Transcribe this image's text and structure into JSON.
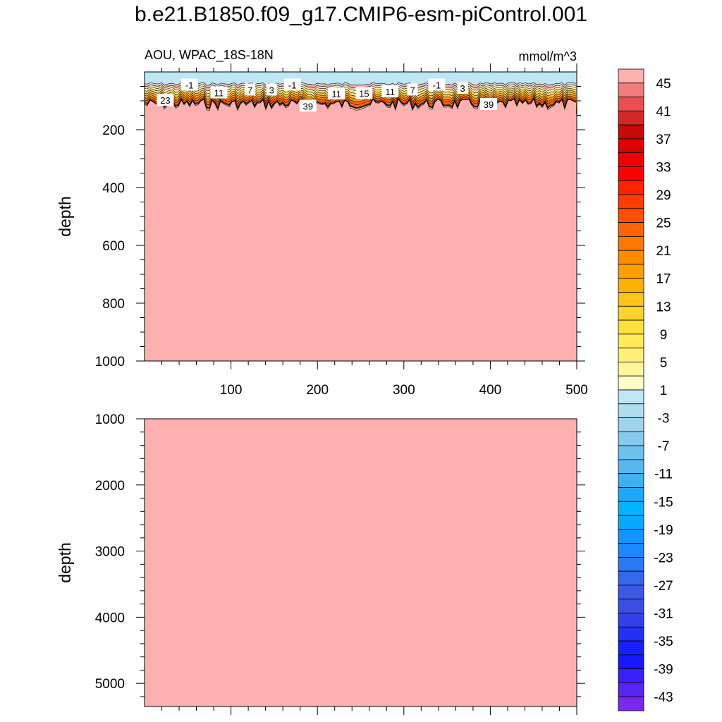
{
  "title": "b.e21.B1850.f09_g17.CMIP6-esm-piControl.001",
  "colors": {
    "fill": "#fdb0b0",
    "surface": "#bfe6f5"
  },
  "chart_data": [
    {
      "type": "heatmap",
      "panel": "upper",
      "left_string": "AOU, WPAC_18S-18N",
      "right_string": "mmol/m^3",
      "ylabel": "depth",
      "xlim": [
        0,
        500
      ],
      "ylim": [
        0,
        1000
      ],
      "x_ticks": [
        "100",
        "200",
        "300",
        "400",
        "500"
      ],
      "x_tick_values": [
        100,
        200,
        300,
        400,
        500
      ],
      "y_ticks": [
        "200",
        "400",
        "600",
        "800",
        "1000"
      ],
      "y_tick_values": [
        200,
        400,
        600,
        800,
        1000
      ],
      "contour_labels": [
        {
          "text": "-1",
          "x": 52,
          "y": 45
        },
        {
          "text": "23",
          "x": 24,
          "y": 98
        },
        {
          "text": "11",
          "x": 86,
          "y": 72
        },
        {
          "text": "7",
          "x": 122,
          "y": 62
        },
        {
          "text": "3",
          "x": 147,
          "y": 62
        },
        {
          "text": "-1",
          "x": 171,
          "y": 45
        },
        {
          "text": "39",
          "x": 189,
          "y": 118
        },
        {
          "text": "11",
          "x": 222,
          "y": 76
        },
        {
          "text": "15",
          "x": 254,
          "y": 74
        },
        {
          "text": "11",
          "x": 284,
          "y": 68
        },
        {
          "text": "7",
          "x": 310,
          "y": 62
        },
        {
          "text": "-1",
          "x": 338,
          "y": 45
        },
        {
          "text": "3",
          "x": 368,
          "y": 56
        },
        {
          "text": "39",
          "x": 398,
          "y": 112
        }
      ]
    },
    {
      "type": "heatmap",
      "panel": "lower",
      "ylabel": "depth",
      "xlim": [
        0,
        500
      ],
      "ylim": [
        1000,
        5350
      ],
      "y_ticks": [
        "1000",
        "2000",
        "3000",
        "4000",
        "5000"
      ],
      "y_tick_values": [
        1000,
        2000,
        3000,
        4000,
        5000
      ]
    }
  ],
  "colorbar": {
    "labels": [
      "45",
      "41",
      "37",
      "33",
      "29",
      "25",
      "21",
      "17",
      "13",
      "9",
      "5",
      "1",
      "-3",
      "-7",
      "-11",
      "-15",
      "-19",
      "-23",
      "-27",
      "-31",
      "-35",
      "-39",
      "-43"
    ],
    "colors": [
      "#fdb0b0",
      "#f07c7c",
      "#e65050",
      "#d42828",
      "#c80a0a",
      "#dc0000",
      "#ee0000",
      "#ff0000",
      "#ff2200",
      "#ff3b00",
      "#ff5000",
      "#ff6400",
      "#ff7800",
      "#ff8c00",
      "#ffa000",
      "#ffb000",
      "#ffc418",
      "#ffd42a",
      "#ffe040",
      "#ffea5a",
      "#fff07a",
      "#fff59a",
      "#ffffc8",
      "#bfe6f5",
      "#afdcf0",
      "#9ed2ee",
      "#88c8ec",
      "#70c0ec",
      "#58b8ee",
      "#40b0f2",
      "#20a8f8",
      "#00b4ff",
      "#08a8ff",
      "#1494ff",
      "#2088ff",
      "#2a78f4",
      "#3268ea",
      "#3a5ae4",
      "#3c4ee2",
      "#3440ea",
      "#2430f4",
      "#1820ff",
      "#1818ff",
      "#3a20f8",
      "#5a24f2",
      "#7a28ec"
    ]
  }
}
